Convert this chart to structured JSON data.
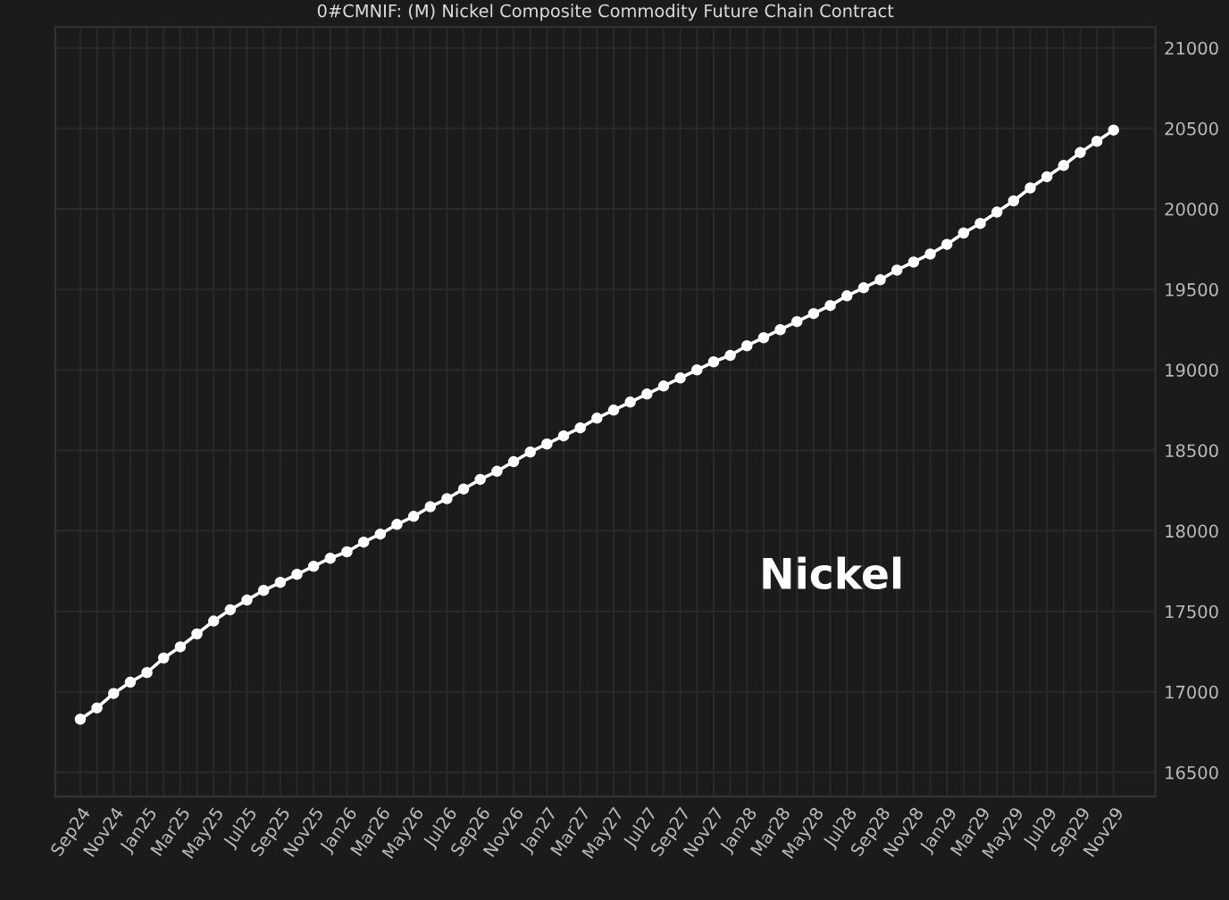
{
  "chart_data": {
    "type": "line",
    "title": "0#CMNIF: (M) Nickel Composite Commodity Future Chain Contract",
    "categories": [
      "Sep24",
      null,
      "Nov24",
      null,
      "Jan25",
      null,
      "Mar25",
      null,
      "May25",
      null,
      "Jul25",
      null,
      "Sep25",
      null,
      "Nov25",
      null,
      "Jan26",
      null,
      "Mar26",
      null,
      "May26",
      null,
      "Jul26",
      null,
      "Sep26",
      null,
      "Nov26",
      null,
      "Jan27",
      null,
      "Mar27",
      null,
      "May27",
      null,
      "Jul27",
      null,
      "Sep27",
      null,
      "Nov27",
      null,
      "Jan28",
      null,
      "Mar28",
      null,
      "May28",
      null,
      "Jul28",
      null,
      "Sep28",
      null,
      "Nov28",
      null,
      "Jan29",
      null,
      "Mar29",
      null,
      "May29",
      null,
      "Jul29",
      null,
      "Sep29",
      null,
      "Nov29"
    ],
    "series": [
      {
        "color": "#ffffff",
        "values": [
          16830,
          16900,
          16990,
          17060,
          17120,
          17210,
          17280,
          17360,
          17440,
          17510,
          17570,
          17630,
          17680,
          17730,
          17780,
          17830,
          17870,
          17930,
          17980,
          18040,
          18090,
          18150,
          18200,
          18260,
          18320,
          18370,
          18430,
          18490,
          18540,
          18590,
          18640,
          18700,
          18750,
          18800,
          18850,
          18900,
          18950,
          19000,
          19050,
          19090,
          19150,
          19200,
          19250,
          19300,
          19350,
          19400,
          19460,
          19510,
          19560,
          19620,
          19670,
          19720,
          19780,
          19850,
          19910,
          19980,
          20050,
          20130,
          20200,
          20270,
          20350,
          20420,
          20490
        ]
      }
    ],
    "ylim": [
      16350,
      21130
    ],
    "yticks": [
      16500,
      17000,
      17500,
      18000,
      18500,
      19000,
      19500,
      20000,
      20500,
      21000
    ],
    "grid": true,
    "marker": "circle",
    "line_style": "solid",
    "annotations": [
      {
        "text": "Nickel"
      }
    ]
  }
}
